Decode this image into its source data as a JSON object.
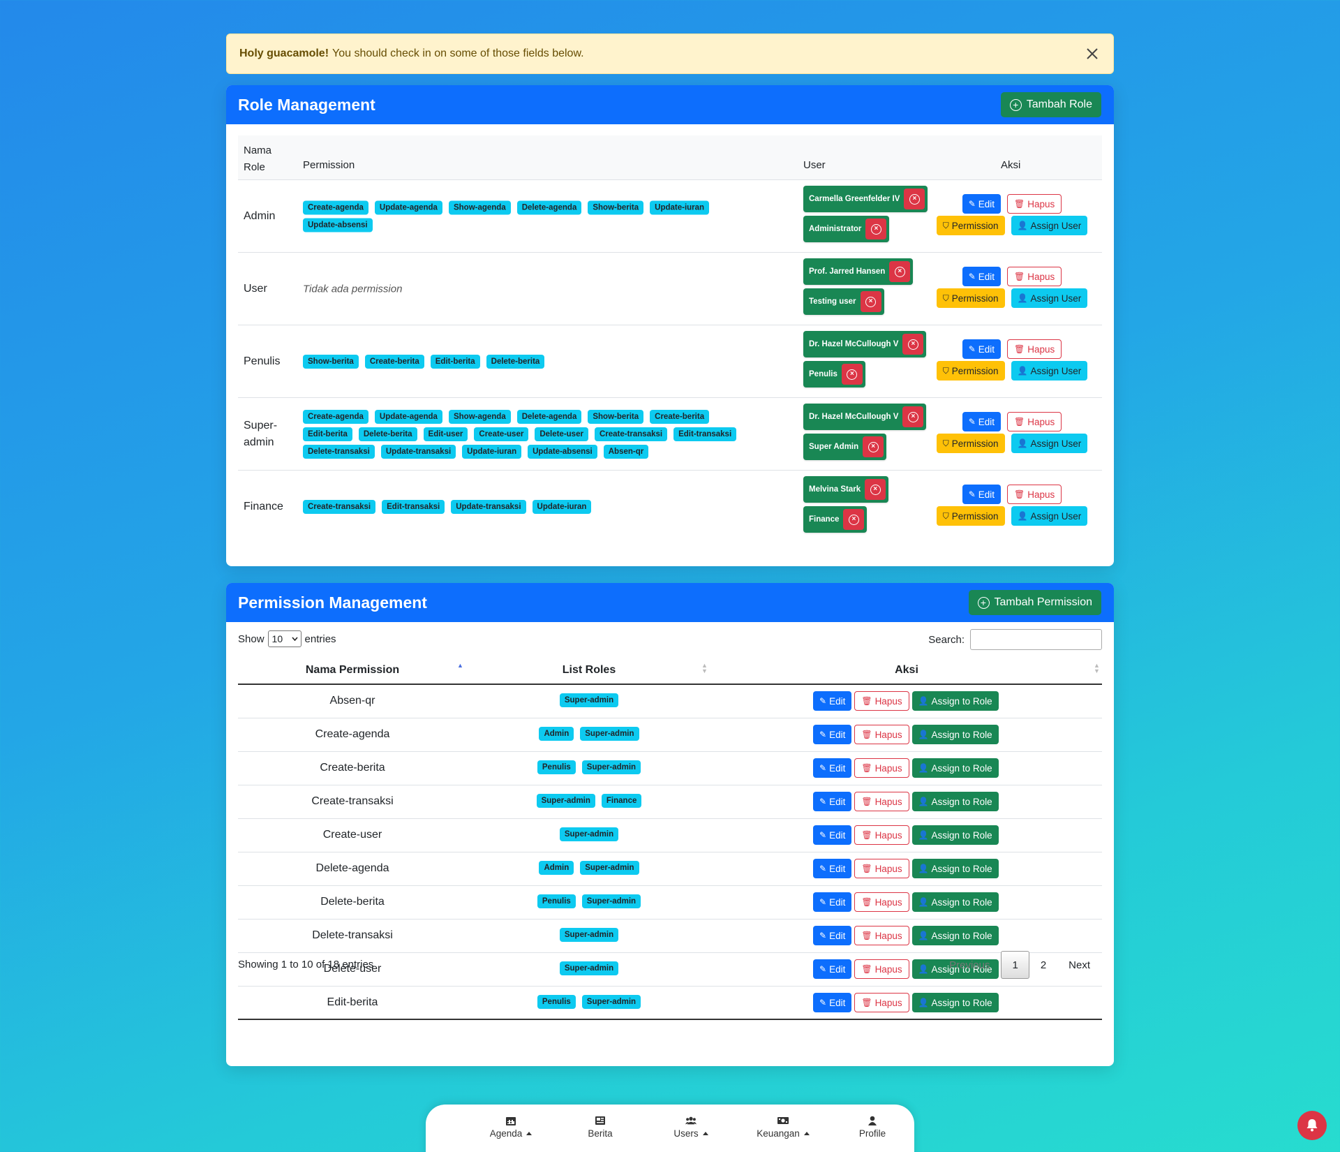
{
  "alert": {
    "strong": "Holy guacamole!",
    "message": "You should check in on some of those fields below."
  },
  "role_management": {
    "title": "Role Management",
    "add_button": "Tambah Role",
    "columns": {
      "name_line1": "Nama",
      "name_line2": "Role",
      "permission": "Permission",
      "user": "User",
      "actions": "Aksi"
    },
    "no_permission": "Tidak ada permission",
    "action_labels": {
      "edit": "Edit",
      "delete": "Hapus",
      "permission": "Permission",
      "assign": "Assign User"
    },
    "roles": [
      {
        "name": "Admin",
        "permissions": [
          "Create-agenda",
          "Update-agenda",
          "Show-agenda",
          "Delete-agenda",
          "Show-berita",
          "Update-iuran",
          "Update-absensi"
        ],
        "users": [
          "Carmella Greenfelder IV",
          "Administrator"
        ]
      },
      {
        "name": "User",
        "permissions": [],
        "users": [
          "Prof. Jarred Hansen",
          "Testing user"
        ]
      },
      {
        "name": "Penulis",
        "permissions": [
          "Show-berita",
          "Create-berita",
          "Edit-berita",
          "Delete-berita"
        ],
        "users": [
          "Dr. Hazel McCullough V",
          "Penulis"
        ]
      },
      {
        "name": "Super-admin",
        "permissions": [
          "Create-agenda",
          "Update-agenda",
          "Show-agenda",
          "Delete-agenda",
          "Show-berita",
          "Create-berita",
          "Edit-berita",
          "Delete-berita",
          "Edit-user",
          "Create-user",
          "Delete-user",
          "Create-transaksi",
          "Edit-transaksi",
          "Delete-transaksi",
          "Update-transaksi",
          "Update-iuran",
          "Update-absensi",
          "Absen-qr"
        ],
        "users": [
          "Dr. Hazel McCullough V",
          "Super Admin"
        ]
      },
      {
        "name": "Finance",
        "permissions": [
          "Create-transaksi",
          "Edit-transaksi",
          "Update-transaksi",
          "Update-iuran"
        ],
        "users": [
          "Melvina Stark",
          "Finance"
        ]
      }
    ]
  },
  "permission_management": {
    "title": "Permission Management",
    "add_button": "Tambah Permission",
    "show_label": "Show",
    "entries_value": "10",
    "entries_label": "entries",
    "search_label": "Search:",
    "columns": {
      "name": "Nama Permission",
      "roles": "List Roles",
      "actions": "Aksi"
    },
    "action_labels": {
      "edit": "Edit",
      "delete": "Hapus",
      "assign": "Assign to Role"
    },
    "rows": [
      {
        "name": "Absen-qr",
        "roles": [
          "Super-admin"
        ]
      },
      {
        "name": "Create-agenda",
        "roles": [
          "Admin",
          "Super-admin"
        ]
      },
      {
        "name": "Create-berita",
        "roles": [
          "Penulis",
          "Super-admin"
        ]
      },
      {
        "name": "Create-transaksi",
        "roles": [
          "Super-admin",
          "Finance"
        ]
      },
      {
        "name": "Create-user",
        "roles": [
          "Super-admin"
        ]
      },
      {
        "name": "Delete-agenda",
        "roles": [
          "Admin",
          "Super-admin"
        ]
      },
      {
        "name": "Delete-berita",
        "roles": [
          "Penulis",
          "Super-admin"
        ]
      },
      {
        "name": "Delete-transaksi",
        "roles": [
          "Super-admin"
        ]
      },
      {
        "name": "Delete-user",
        "roles": [
          "Super-admin"
        ]
      },
      {
        "name": "Edit-berita",
        "roles": [
          "Penulis",
          "Super-admin"
        ]
      }
    ],
    "info": "Showing 1 to 10 of 18 entries",
    "pager": {
      "previous": "Previous",
      "pages": [
        "1",
        "2"
      ],
      "next": "Next"
    }
  },
  "bottom_nav": {
    "items": [
      {
        "label": "Agenda",
        "icon": "calendar-icon",
        "dropdown": true
      },
      {
        "label": "Berita",
        "icon": "newspaper-icon",
        "dropdown": false
      },
      {
        "label": "Users",
        "icon": "users-icon",
        "dropdown": true
      },
      {
        "label": "Keuangan",
        "icon": "money-icon",
        "dropdown": true
      },
      {
        "label": "Profile",
        "icon": "user-icon",
        "dropdown": false
      }
    ]
  },
  "notification": {
    "icon": "bell-icon"
  }
}
